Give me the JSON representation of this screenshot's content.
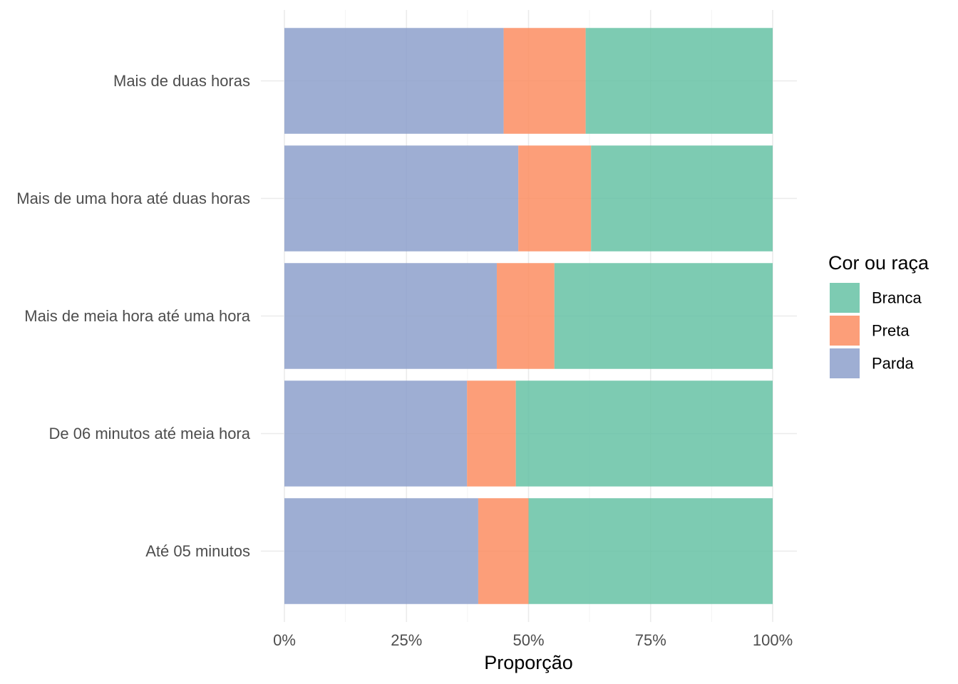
{
  "chart_data": {
    "type": "bar",
    "orientation": "horizontal",
    "stacked": true,
    "categories": [
      "Até 05 minutos",
      "De 06 minutos até meia hora",
      "Mais de meia hora até uma hora",
      "Mais de uma hora até duas horas",
      "Mais de duas horas"
    ],
    "series": [
      {
        "name": "Parda",
        "color": "#8da0cb",
        "values": [
          0.397,
          0.374,
          0.435,
          0.479,
          0.449
        ]
      },
      {
        "name": "Preta",
        "color": "#fc8d62",
        "values": [
          0.103,
          0.1,
          0.118,
          0.149,
          0.168
        ]
      },
      {
        "name": "Branca",
        "color": "#66c2a5",
        "values": [
          0.5,
          0.526,
          0.447,
          0.372,
          0.383
        ]
      }
    ],
    "legend_order": [
      "Branca",
      "Preta",
      "Parda"
    ],
    "xlabel": "Proporção",
    "ylabel": "",
    "xlim": [
      0,
      1
    ],
    "x_ticks": [
      0,
      0.25,
      0.5,
      0.75,
      1
    ],
    "x_tick_labels": [
      "0%",
      "25%",
      "50%",
      "75%",
      "100%"
    ],
    "legend_title": "Cor ou raça",
    "legend_position": "right",
    "grid": true,
    "bar_opacity": 0.85
  }
}
